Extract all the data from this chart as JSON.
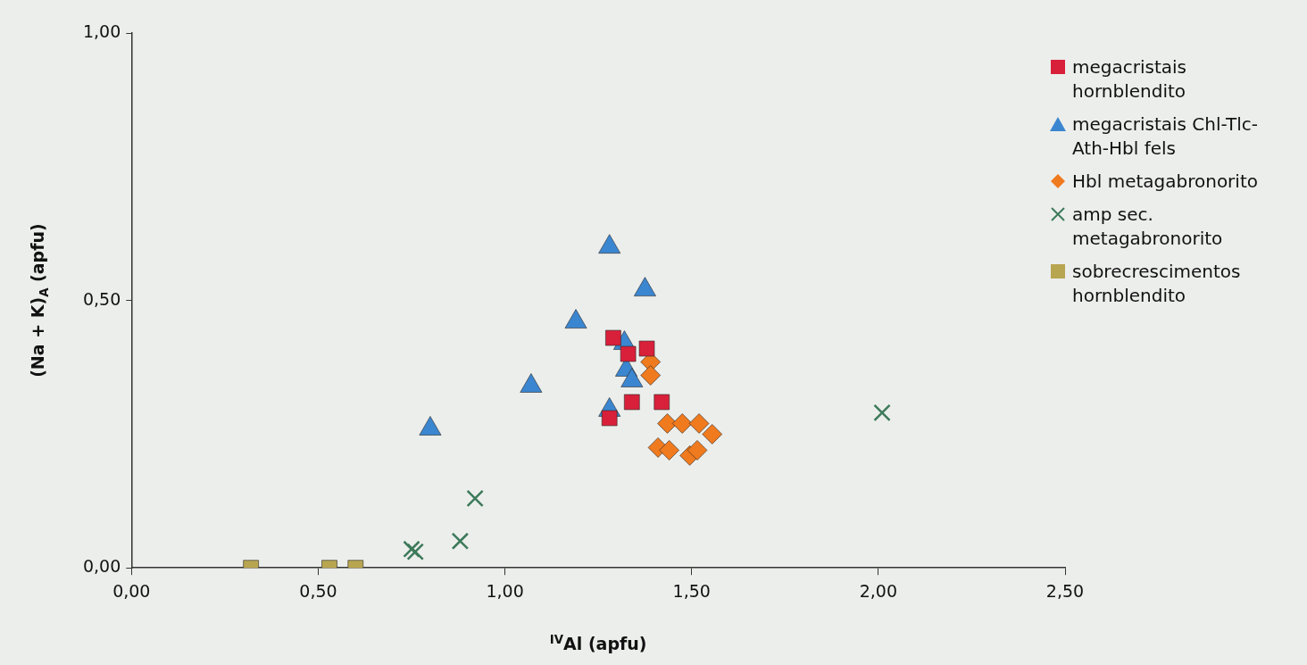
{
  "chart_data": {
    "type": "scatter",
    "xlabel": "$^{IV}$Al (apfu)",
    "ylabel": "(Na + K)$_{A}$ (apfu)",
    "xlim": [
      0,
      2.5
    ],
    "ylim": [
      0,
      1
    ],
    "xticks": [
      {
        "value": 0,
        "label": "0,00"
      },
      {
        "value": 0.5,
        "label": "0,50"
      },
      {
        "value": 1,
        "label": "1,00"
      },
      {
        "value": 1.5,
        "label": "1,50"
      },
      {
        "value": 2,
        "label": "2,00"
      },
      {
        "value": 2.5,
        "label": "2,50"
      }
    ],
    "yticks": [
      {
        "value": 0,
        "label": "0,00"
      },
      {
        "value": 0.5,
        "label": "0,50"
      },
      {
        "value": 1,
        "label": "1,00"
      }
    ],
    "grid": false,
    "legend": "top right",
    "series": [
      {
        "name": "megacristais hornblendito",
        "color": "#d9203a",
        "marker": "square",
        "x": [
          1.29,
          1.38,
          1.33,
          1.34,
          1.42,
          1.28
        ],
        "values": [
          0.43,
          0.41,
          0.4,
          0.31,
          0.31,
          0.28
        ]
      },
      {
        "name": "megacristais Chl-Tlc-Ath-Hbl fels",
        "color": "#3b86d0",
        "marker": "triangle",
        "x": [
          1.28,
          1.375,
          1.19,
          1.32,
          1.325,
          1.34,
          1.07,
          1.28,
          0.8
        ],
        "values": [
          0.6,
          0.52,
          0.46,
          0.42,
          0.37,
          0.35,
          0.34,
          0.295,
          0.26
        ]
      },
      {
        "name": "Hbl metagabronorito",
        "color": "#f07a1e",
        "marker": "diamond",
        "x": [
          1.39,
          1.39,
          1.435,
          1.475,
          1.52,
          1.555,
          1.41,
          1.44,
          1.495,
          1.515
        ],
        "values": [
          0.385,
          0.36,
          0.27,
          0.27,
          0.27,
          0.25,
          0.225,
          0.22,
          0.21,
          0.22
        ]
      },
      {
        "name": "amp sec. metagabronorito",
        "color": "#3d7a5a",
        "marker": "cross",
        "x": [
          0.92,
          0.88,
          0.76,
          0.75,
          2.01
        ],
        "values": [
          0.13,
          0.05,
          0.03,
          0.035,
          0.29
        ]
      },
      {
        "name": "sobrecrescimentos hornblendito",
        "color": "#b8a550",
        "marker": "square",
        "x": [
          0.32,
          0.53,
          0.6
        ],
        "values": [
          0,
          0,
          0
        ]
      }
    ]
  }
}
